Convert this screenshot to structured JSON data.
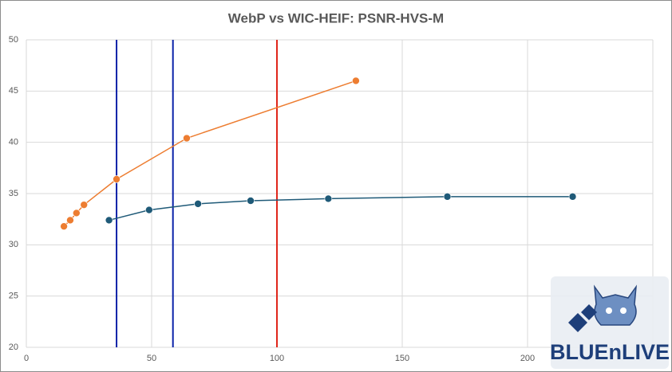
{
  "chart_data": {
    "type": "line",
    "title": "WebP vs WIC-HEIF: PSNR-HVS-M",
    "series": [
      {
        "color": "#ed7d31",
        "x": [
          15,
          17.5,
          20,
          23,
          36,
          64,
          131.5
        ],
        "values": [
          31.8,
          32.4,
          33.1,
          33.9,
          36.4,
          40.4,
          46.0
        ]
      },
      {
        "color": "#1f5a78",
        "x": [
          33,
          49,
          68.5,
          89.5,
          120.5,
          168,
          218
        ],
        "values": [
          32.4,
          33.4,
          34.0,
          34.3,
          34.5,
          34.7,
          34.7
        ]
      }
    ],
    "reference_lines": [
      {
        "value": 36,
        "color": "#0a22a8"
      },
      {
        "value": 58.5,
        "color": "#0a22a8"
      },
      {
        "value": 100,
        "color": "#e0261b"
      }
    ],
    "xlim": [
      0,
      250
    ],
    "xticks": [
      0,
      50,
      100,
      150,
      200
    ],
    "ylim": [
      20,
      50
    ],
    "yticks": [
      20,
      25,
      30,
      35,
      40,
      45,
      50
    ],
    "grid": true
  },
  "watermark": "BLUEnLIVE"
}
